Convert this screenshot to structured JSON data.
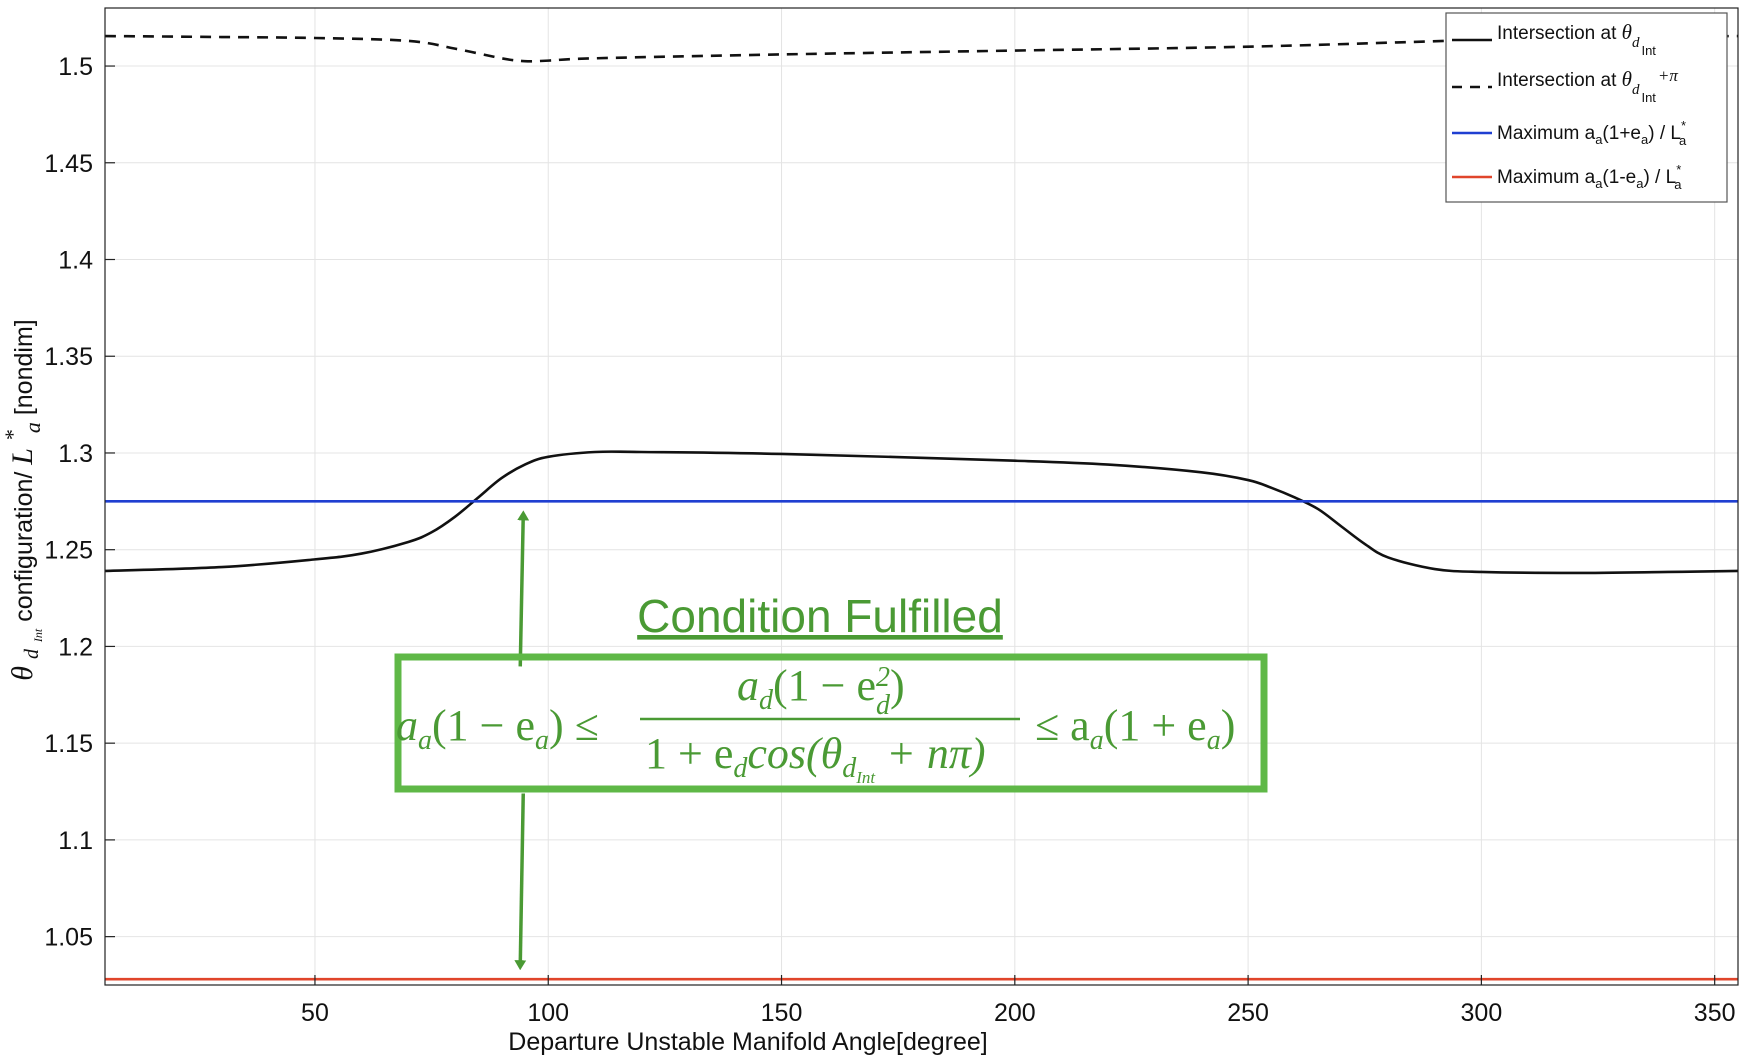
{
  "chart_data": {
    "type": "line",
    "xlabel": "Departure Unstable Manifold Angle[degree]",
    "ylabel": {
      "symbol": "θ",
      "subscript": "d",
      "subsubscript": "Int",
      "text": " configuration/",
      "L": "L",
      "L_sub": "a",
      "L_sup": "*",
      "unit": " [nondim]"
    },
    "xlim": [
      5,
      355
    ],
    "ylim": [
      1.025,
      1.53
    ],
    "x_ticks": [
      50,
      100,
      150,
      200,
      250,
      300,
      350
    ],
    "y_ticks": [
      1.05,
      1.1,
      1.15,
      1.2,
      1.25,
      1.3,
      1.35,
      1.4,
      1.45,
      1.5
    ],
    "y_tick_labels": [
      "1.05",
      "1.1",
      "1.15",
      "1.2",
      "1.25",
      "1.3",
      "1.35",
      "1.4",
      "1.45",
      "1.5"
    ],
    "grid": true,
    "legend_position": "top-right",
    "series": [
      {
        "name": "Intersection at θ_dInt",
        "legend": {
          "text": "Intersection at ",
          "theta": "θ",
          "sub": "d",
          "subsub": "Int",
          "suffix": ""
        },
        "style": "solid",
        "color": "#111111",
        "x": [
          5,
          30,
          50,
          60,
          70,
          75,
          80,
          85,
          90,
          95,
          100,
          110,
          120,
          150,
          200,
          220,
          240,
          250,
          255,
          260,
          265,
          270,
          275,
          280,
          290,
          300,
          320,
          340,
          355
        ],
        "y": [
          1.239,
          1.241,
          1.245,
          1.248,
          1.254,
          1.259,
          1.267,
          1.277,
          1.287,
          1.294,
          1.298,
          1.3005,
          1.3005,
          1.2995,
          1.296,
          1.294,
          1.29,
          1.286,
          1.282,
          1.277,
          1.271,
          1.262,
          1.253,
          1.246,
          1.24,
          1.2385,
          1.238,
          1.2385,
          1.239
        ]
      },
      {
        "name": "Intersection at θ_dInt + π",
        "legend": {
          "text": "Intersection at ",
          "theta": "θ",
          "sub": "d",
          "subsub": "Int",
          "suffix": "+π"
        },
        "style": "dashed",
        "color": "#111111",
        "x": [
          5,
          30,
          50,
          70,
          80,
          90,
          95,
          100,
          110,
          150,
          200,
          250,
          300,
          330,
          355
        ],
        "y": [
          1.5155,
          1.515,
          1.5145,
          1.513,
          1.509,
          1.504,
          1.5025,
          1.5028,
          1.504,
          1.506,
          1.508,
          1.51,
          1.5135,
          1.515,
          1.5155
        ]
      },
      {
        "name": "Maximum a_a(1+e_a) / L*_a",
        "legend": {
          "parts": [
            "Maximum a",
            "a",
            "(1+e",
            "a",
            ") / L",
            "a",
            "*"
          ]
        },
        "style": "solid",
        "color": "#1f3fd1",
        "x": [
          5,
          355
        ],
        "y": [
          1.275,
          1.275
        ]
      },
      {
        "name": "Maximum a_a(1-e_a) / L*_a",
        "legend": {
          "parts": [
            "Maximum a",
            "a",
            "(1-e",
            "a",
            ") / L",
            "a",
            "*"
          ]
        },
        "style": "solid",
        "color": "#e0452b",
        "x": [
          5,
          355
        ],
        "y": [
          1.028,
          1.028
        ]
      }
    ],
    "annotation": {
      "title": "Condition Fulfilled",
      "color": "#4a9a34",
      "box_color": "#5fb847",
      "arrow_x": 94,
      "arrow_from_y": 1.2,
      "arrow_up_to_y": 1.275,
      "arrow_down_from_y": 1.124,
      "arrow_down_to_y": 1.028,
      "formula": {
        "left": "a",
        "left_sub": "a",
        "left_mid": "(1 − e",
        "left_mid_sub": "a",
        "left_end": ") ≤",
        "num_a": "a",
        "num_a_sub": "d",
        "num_mid": "(1 − e",
        "num_e_sup": "2",
        "num_e_sub": "d",
        "num_end": ")",
        "den_start": "1 + e",
        "den_e_sub": "d",
        "den_cos": "cos(θ",
        "den_theta_sub": "d",
        "den_theta_subsub": "Int",
        "den_end": " + nπ)",
        "right_start": "≤ a",
        "right_sub": "a",
        "right_mid": "(1 + e",
        "right_mid_sub": "a",
        "right_end": ")"
      }
    }
  }
}
